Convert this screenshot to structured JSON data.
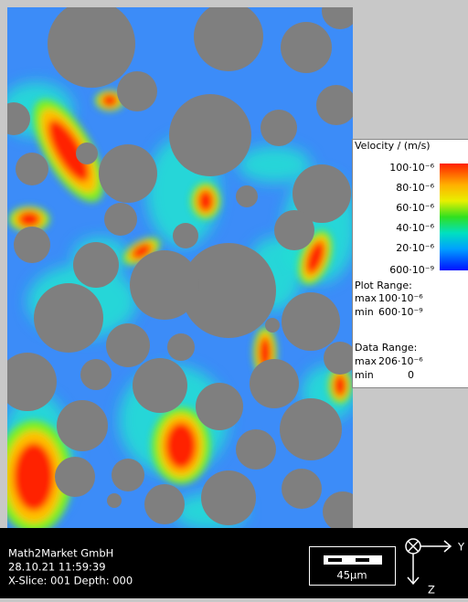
{
  "legend": {
    "title": "Velocity / (m/s)",
    "ticks": [
      "100·10⁻⁶",
      "80·10⁻⁶",
      "60·10⁻⁶",
      "40·10⁻⁶",
      "20·10⁻⁶",
      "600·10⁻⁹"
    ],
    "plot_range": {
      "heading": "Plot Range:",
      "max_label": "max",
      "max": "100·10⁻⁶",
      "min_label": "min",
      "min": "600·10⁻⁹"
    },
    "data_range": {
      "heading": "Data Range:",
      "max_label": "max",
      "max": "206·10⁻⁶",
      "min_label": "min",
      "min": "0"
    }
  },
  "footer": {
    "company": "Math2Market GmbH",
    "timestamp": "28.10.21 11:59:39",
    "slice": "X-Slice: 001 Depth: 000",
    "scale_bar": "45µm",
    "axis_y": "Y",
    "axis_z": "Z"
  }
}
